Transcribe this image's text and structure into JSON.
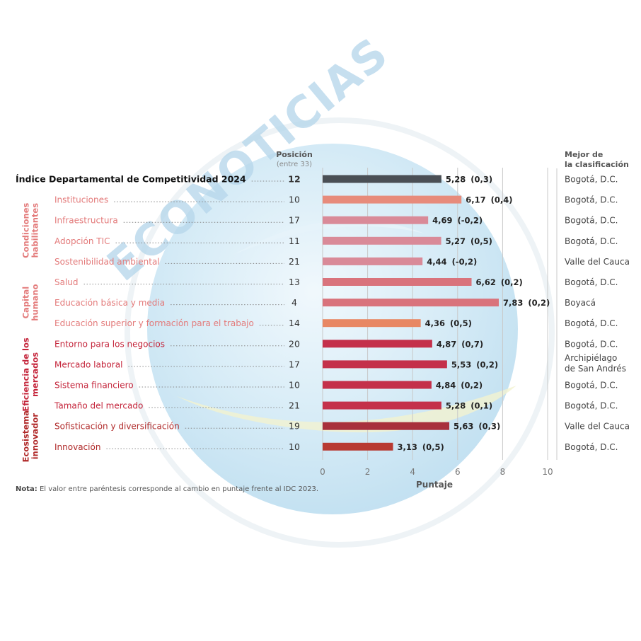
{
  "chart_data": {
    "type": "bar",
    "orientation": "horizontal",
    "xlabel": "Puntaje",
    "xlim": [
      0,
      10
    ],
    "xticks": [
      "0",
      "2",
      "4",
      "6",
      "8",
      "10"
    ],
    "grid": "vertical",
    "col_position_header_1": "Posición",
    "col_position_header_2": "(entre 33)",
    "col_best_header_1": "Mejor de",
    "col_best_header_2": "la clasificación",
    "groups": [
      {
        "label": "Condiciones habilitantes",
        "lines": [
          "Condiciones",
          "habilitantes"
        ],
        "color": "#e37a7a"
      },
      {
        "label": "Capital humano",
        "lines": [
          "Capital",
          "humano"
        ],
        "color": "#e37a7a"
      },
      {
        "label": "Eficiencia de los mercados",
        "lines": [
          "Eficiencia de los",
          "mercados"
        ],
        "color": "#c4243a"
      },
      {
        "label": "Ecosistema innovador",
        "lines": [
          "Ecosistema",
          "innovador"
        ],
        "color": "#b02a2a"
      }
    ],
    "rows": [
      {
        "label": "Índice Departamental de Competitividad 2024",
        "position": "12",
        "value": 5.28,
        "value_label": "5,28",
        "change": "(0,3)",
        "best": "Bogotá, D.C.",
        "color": "#4a4f55",
        "text_color": "#111111",
        "bold": true
      },
      {
        "label": "Instituciones",
        "position": "10",
        "value": 6.17,
        "value_label": "6,17",
        "change": "(0,4)",
        "best": "Bogotá, D.C.",
        "color": "#e78b7b",
        "text_color": "#e37a7a"
      },
      {
        "label": "Infraestructura",
        "position": "17",
        "value": 4.69,
        "value_label": "4,69",
        "change": "(-0,2)",
        "best": "Bogotá, D.C.",
        "color": "#d98a98",
        "text_color": "#e37a7a"
      },
      {
        "label": "Adopción TIC",
        "position": "11",
        "value": 5.27,
        "value_label": "5,27",
        "change": "(0,5)",
        "best": "Bogotá, D.C.",
        "color": "#d98a98",
        "text_color": "#e37a7a"
      },
      {
        "label": "Sostenibilidad ambiental",
        "position": "21",
        "value": 4.44,
        "value_label": "4,44",
        "change": "(-0,2)",
        "best": "Valle del Cauca",
        "color": "#d98a98",
        "text_color": "#e37a7a"
      },
      {
        "label": "Salud",
        "position": "13",
        "value": 6.62,
        "value_label": "6,62",
        "change": "(0,2)",
        "best": "Bogotá, D.C.",
        "color": "#d9737c",
        "text_color": "#e37a7a"
      },
      {
        "label": "Educación básica y media",
        "position": "4",
        "value": 7.83,
        "value_label": "7,83",
        "change": "(0,2)",
        "best": "Boyacá",
        "color": "#d9737c",
        "text_color": "#e37a7a"
      },
      {
        "label": "Educación superior y formación para el trabajo",
        "position": "14",
        "value": 4.36,
        "value_label": "4,36",
        "change": "(0,5)",
        "best": "Bogotá, D.C.",
        "color": "#e88763",
        "text_color": "#e37a7a"
      },
      {
        "label": "Entorno para los negocios",
        "position": "20",
        "value": 4.87,
        "value_label": "4,87",
        "change": "(0,7)",
        "best": "Bogotá, D.C.",
        "color": "#c4304a",
        "text_color": "#c4243a"
      },
      {
        "label": "Mercado laboral",
        "position": "17",
        "value": 5.53,
        "value_label": "5,53",
        "change": "(0,2)",
        "best": "Archipiélago de San Andrés",
        "best_lines": [
          "Archipiélago",
          "de San Andrés"
        ],
        "color": "#c4304a",
        "text_color": "#c4243a"
      },
      {
        "label": "Sistema financiero",
        "position": "10",
        "value": 4.84,
        "value_label": "4,84",
        "change": "(0,2)",
        "best": "Bogotá, D.C.",
        "color": "#c4304a",
        "text_color": "#c4243a"
      },
      {
        "label": "Tamaño del mercado",
        "position": "21",
        "value": 5.28,
        "value_label": "5,28",
        "change": "(0,1)",
        "best": "Bogotá, D.C.",
        "color": "#c4304a",
        "text_color": "#c4243a"
      },
      {
        "label": "Sofisticación y diversificación",
        "position": "19",
        "value": 5.63,
        "value_label": "5,63",
        "change": "(0,3)",
        "best": "Valle del Cauca",
        "color": "#a8303c",
        "text_color": "#b02a2a"
      },
      {
        "label": "Innovación",
        "position": "10",
        "value": 3.13,
        "value_label": "3,13",
        "change": "(0,5)",
        "best": "Bogotá, D.C.",
        "color": "#b83a32",
        "text_color": "#b02a2a"
      }
    ]
  },
  "note": {
    "label": "Nota:",
    "text": " El valor entre paréntesis corresponde al cambio en puntaje frente al IDC 2023."
  },
  "watermark": {
    "text": "ECONOTICIAS"
  }
}
